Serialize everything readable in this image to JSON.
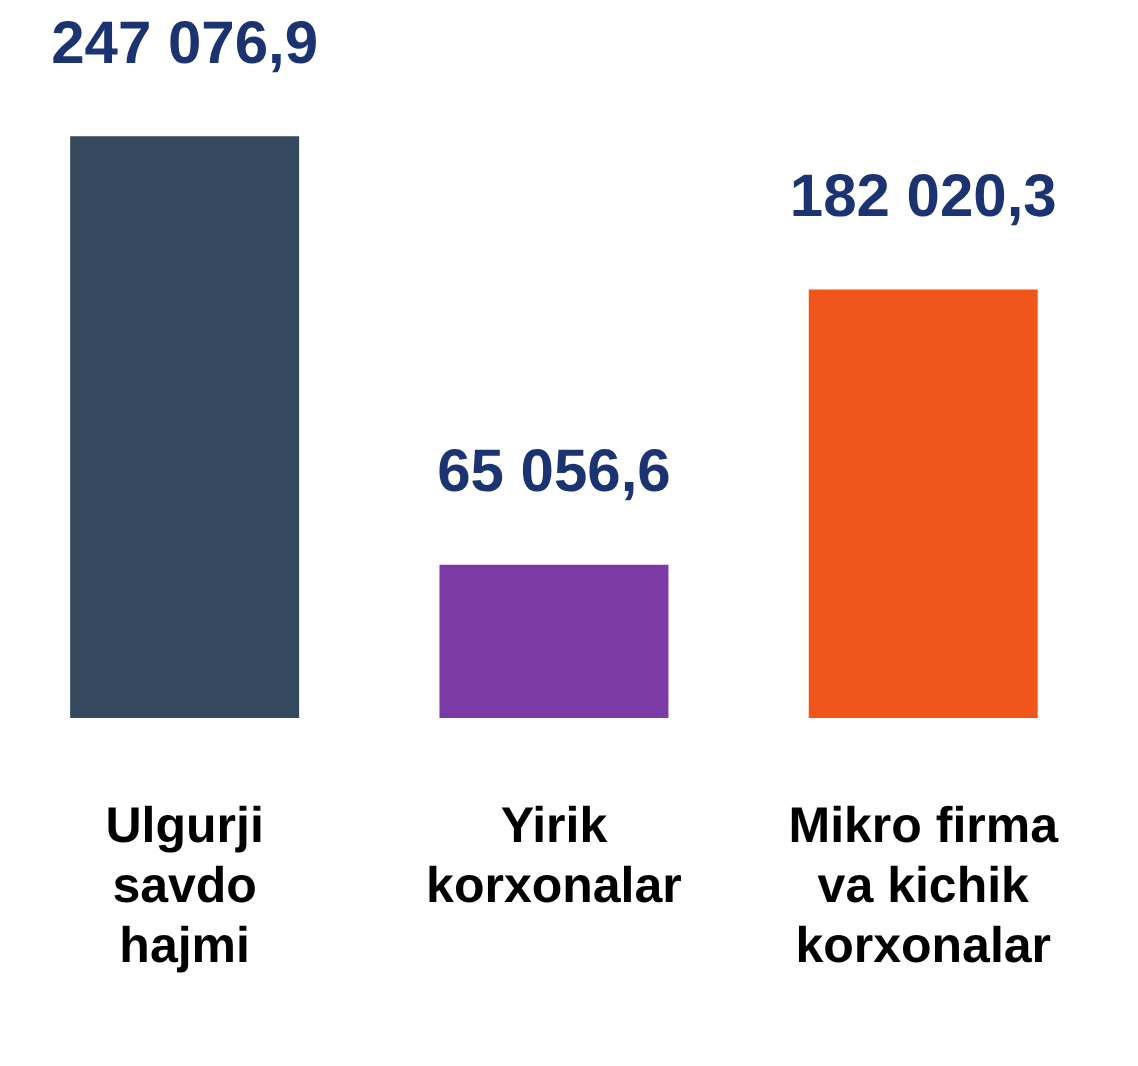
{
  "chart_data": {
    "type": "bar",
    "categories": [
      "Ulgurji\nsavdo\nhajmi",
      "Yirik\nkorxonalar",
      "Mikro firma\nva kichik\nkorxonalar"
    ],
    "values": [
      247076.9,
      65056.6,
      182020.3
    ],
    "colors": [
      "#34495e",
      "#7b3aa6",
      "#f0561c"
    ],
    "value_labels": [
      "247 076,9",
      "65 056,6",
      "182 020,3"
    ],
    "grid": false,
    "legend": false
  }
}
